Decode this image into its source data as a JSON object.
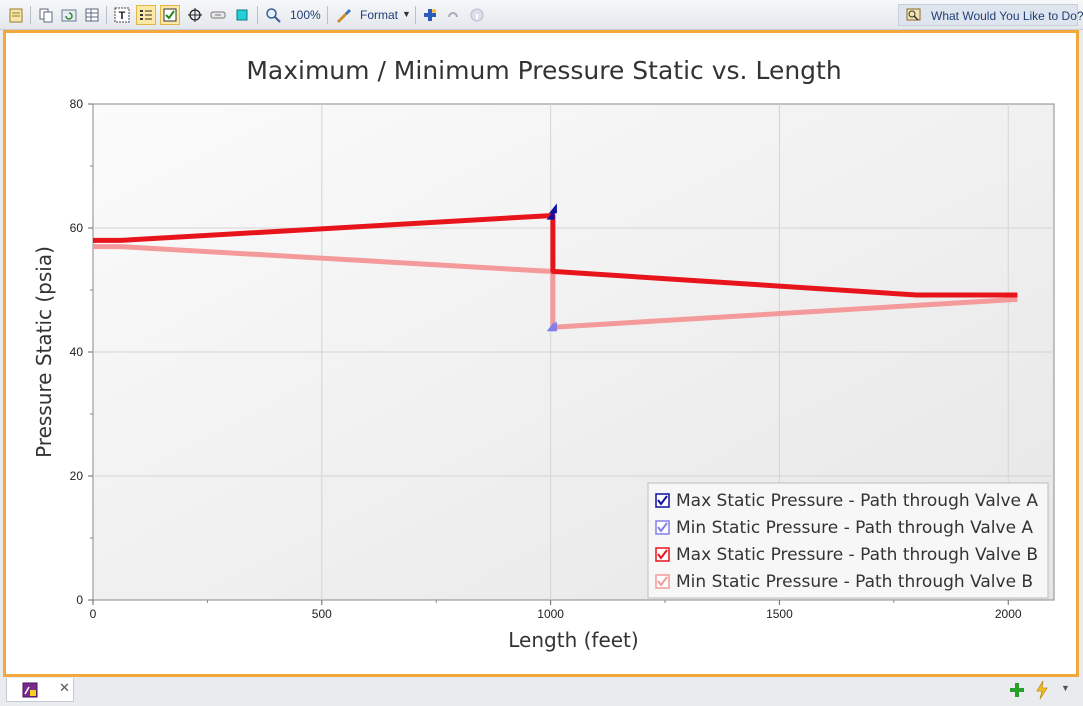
{
  "toolbar": {
    "zoom_label": "100%",
    "format_label": "Format",
    "help_label": "What Would You Like to Do?",
    "icons": [
      "notepad-icon",
      "copy-icon",
      "refresh-icon",
      "table-icon",
      "text-icon",
      "legend-icon",
      "checkbox-icon",
      "crosshair-icon",
      "link-icon",
      "square-icon",
      "zoom-icon",
      "format-icon",
      "add-icon",
      "undo-icon",
      "info-icon",
      "help-icon"
    ]
  },
  "chart_data": {
    "type": "line",
    "title": "Maximum / Minimum Pressure Static vs. Length",
    "xlabel": "Length (feet)",
    "ylabel": "Pressure Static (psia)",
    "xlim": [
      0,
      2100
    ],
    "ylim": [
      0,
      80
    ],
    "xticks": [
      "0",
      "500",
      "1000",
      "1500",
      "2000"
    ],
    "yticks": [
      "0",
      "20",
      "40",
      "60",
      "80"
    ],
    "grid": true,
    "legend_position": "bottom-right",
    "series": [
      {
        "name": "Max Static Pressure - Path through Valve A",
        "color": "#1010a0",
        "x": [
          1000,
          1005
        ],
        "y": [
          62,
          63
        ]
      },
      {
        "name": "Min Static Pressure - Path through Valve A",
        "color": "#8080e8",
        "x": [
          1000,
          1005
        ],
        "y": [
          44,
          44
        ]
      },
      {
        "name": "Max Static Pressure - Path through Valve B",
        "color": "#e8141c",
        "x": [
          0,
          60,
          1000,
          1005,
          1005,
          1800,
          2020
        ],
        "y": [
          58,
          58,
          62,
          62,
          53,
          49.2,
          49.2
        ]
      },
      {
        "name": "Min Static Pressure - Path through Valve B",
        "color": "#f49a9a",
        "x": [
          0,
          60,
          1000,
          1005,
          1005,
          2020
        ],
        "y": [
          57,
          57,
          53,
          53,
          44,
          48.5
        ]
      }
    ]
  },
  "bottom": {
    "icons": [
      "graph-tab-icon",
      "close-icon",
      "add-icon",
      "lightning-icon",
      "dropdown-icon"
    ]
  }
}
